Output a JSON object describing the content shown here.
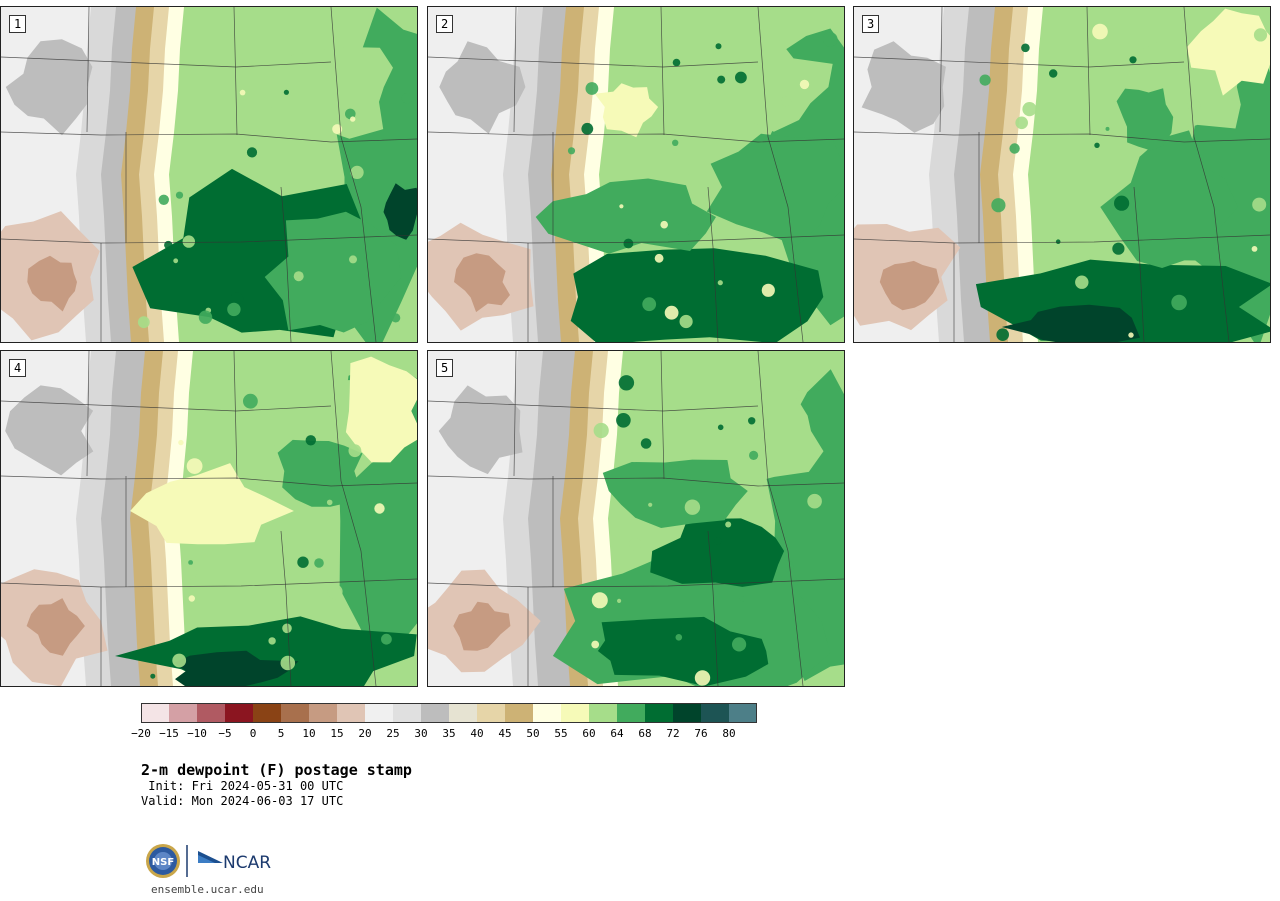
{
  "panels": [
    {
      "number": "1",
      "variant": 1
    },
    {
      "number": "2",
      "variant": 2
    },
    {
      "number": "3",
      "variant": 3
    },
    {
      "number": "4",
      "variant": 4
    },
    {
      "number": "5",
      "variant": 5
    }
  ],
  "colorbar": {
    "colors": [
      "#f4e4e6",
      "#d4a0a5",
      "#b05a62",
      "#8b1520",
      "#8a4315",
      "#a8704d",
      "#c69b82",
      "#e0c5b5",
      "#f0f0f0",
      "#e0e0e0",
      "#bdbdbd",
      "#e6e3d2",
      "#e6d5a8",
      "#cdb275",
      "#ffffe3",
      "#f6fab8",
      "#a6dd8a",
      "#41ab5d",
      "#006d32",
      "#00442b",
      "#1d5454",
      "#4d7f88"
    ],
    "ticks": [
      "−20",
      "−15",
      "−10",
      "−5",
      "0",
      "5",
      "10",
      "15",
      "20",
      "25",
      "30",
      "35",
      "40",
      "45",
      "50",
      "55",
      "60",
      "64",
      "68",
      "72",
      "76",
      "80"
    ]
  },
  "title": "2-m dewpoint (F) postage stamp",
  "init": " Init: Fri 2024-05-31 00 UTC",
  "valid": "Valid: Mon 2024-06-03 17 UTC",
  "logo": {
    "left_text": "NSF",
    "right_text": "NCAR"
  },
  "site": "ensemble.ucar.edu"
}
